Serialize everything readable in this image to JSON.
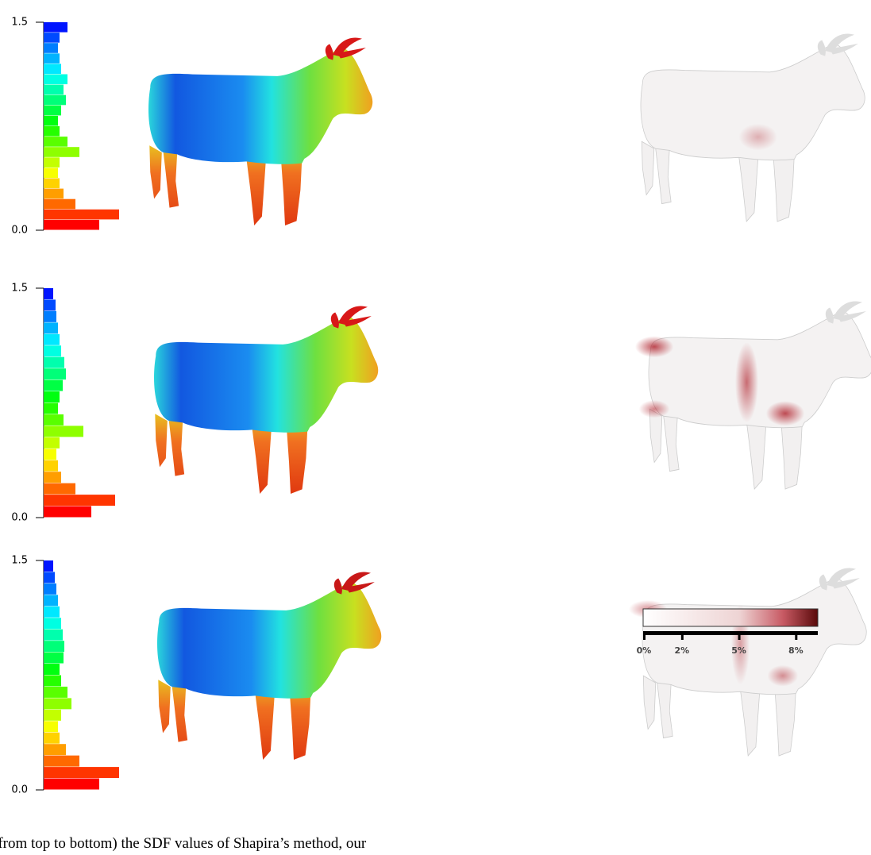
{
  "panels": [
    {
      "ylim": [
        0,
        1.5
      ],
      "yticks": [
        {
          "value": 0,
          "label": "0.0"
        },
        {
          "value": 1.5,
          "label": "1.5"
        }
      ],
      "counts": [
        70,
        95,
        40,
        25,
        20,
        18,
        20,
        45,
        30,
        20,
        18,
        22,
        28,
        25,
        30,
        22,
        20,
        18,
        20,
        30
      ]
    },
    {
      "ylim": [
        0,
        1.5
      ],
      "yticks": [
        {
          "value": 0,
          "label": "0.0"
        },
        {
          "value": 1.5,
          "label": "1.5"
        }
      ],
      "counts": [
        60,
        90,
        40,
        22,
        18,
        16,
        20,
        50,
        25,
        18,
        20,
        24,
        28,
        26,
        22,
        20,
        18,
        16,
        15,
        12
      ]
    },
    {
      "ylim": [
        0,
        1.5
      ],
      "yticks": [
        {
          "value": 0,
          "label": "0.0"
        },
        {
          "value": 1.5,
          "label": "1.5"
        }
      ],
      "counts": [
        70,
        95,
        45,
        28,
        20,
        18,
        22,
        35,
        30,
        22,
        20,
        25,
        26,
        24,
        22,
        20,
        18,
        16,
        14,
        12
      ]
    }
  ],
  "colorbar": {
    "xlim": [
      0,
      9.2
    ],
    "xticks": [
      {
        "value": 0,
        "label": "0%"
      },
      {
        "value": 2,
        "label": "2%"
      },
      {
        "value": 5,
        "label": "5%"
      },
      {
        "value": 8,
        "label": "8%"
      }
    ]
  },
  "caption": "(from top to bottom) the SDF values of Shapira’s method, our"
}
